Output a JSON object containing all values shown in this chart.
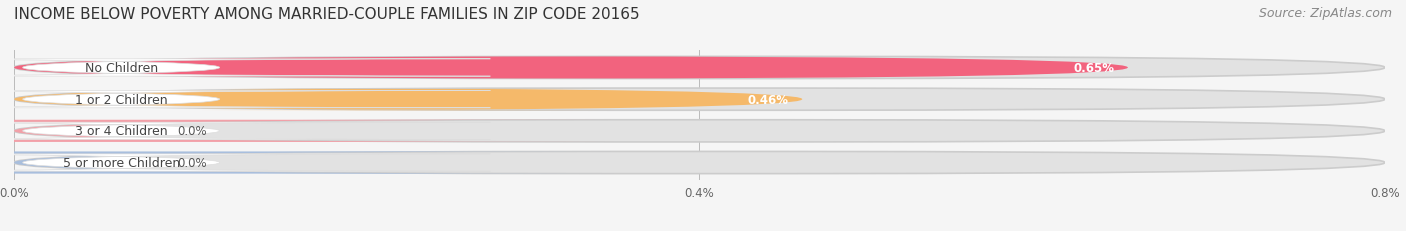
{
  "title": "INCOME BELOW POVERTY AMONG MARRIED-COUPLE FAMILIES IN ZIP CODE 20165",
  "source": "Source: ZipAtlas.com",
  "categories": [
    "No Children",
    "1 or 2 Children",
    "3 or 4 Children",
    "5 or more Children"
  ],
  "values": [
    0.65,
    0.46,
    0.0,
    0.0
  ],
  "bar_colors": [
    "#f2637e",
    "#f5b96a",
    "#f2a0a8",
    "#a8bedd"
  ],
  "xlim": [
    0,
    0.8
  ],
  "xticks": [
    0.0,
    0.4,
    0.8
  ],
  "xticklabels": [
    "0.0%",
    "0.4%",
    "0.8%"
  ],
  "background_color": "#f5f5f5",
  "bar_background": "#e2e2e2",
  "title_fontsize": 11,
  "source_fontsize": 9,
  "label_fontsize": 9,
  "value_fontsize": 8.5,
  "bar_height": 0.7,
  "value_labels": [
    "0.65%",
    "0.46%",
    "0.0%",
    "0.0%"
  ]
}
